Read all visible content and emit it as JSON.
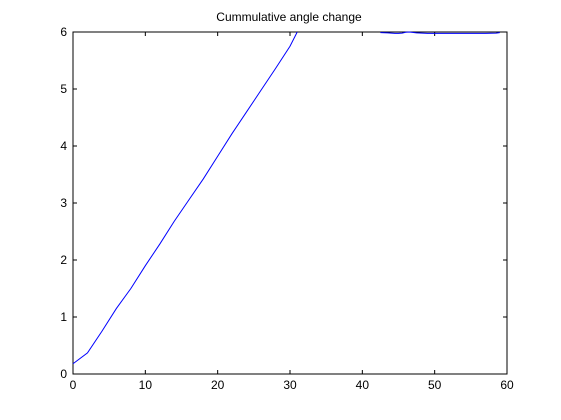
{
  "chart_data": {
    "type": "line",
    "title": "Cummulative angle change",
    "xlabel": "",
    "ylabel": "",
    "xlim": [
      0,
      60
    ],
    "ylim": [
      0,
      6
    ],
    "xticks": [
      "0",
      "10",
      "20",
      "30",
      "40",
      "50",
      "60"
    ],
    "yticks": [
      "0",
      "1",
      "2",
      "3",
      "4",
      "5",
      "6"
    ],
    "grid": false,
    "legend": "none",
    "line_color": "#0000ff",
    "series": [
      {
        "x": [
          0,
          2,
          4,
          6,
          8,
          10,
          12,
          14,
          16,
          18,
          20,
          22,
          24,
          26,
          28,
          30,
          31
        ],
        "y": [
          0.18,
          0.37,
          0.75,
          1.15,
          1.5,
          1.9,
          2.28,
          2.68,
          3.05,
          3.42,
          3.82,
          4.22,
          4.6,
          4.98,
          5.36,
          5.75,
          6.0
        ]
      },
      {
        "x": [
          42.5,
          43.5,
          44.5,
          45.0,
          45.5,
          46.0,
          46.5,
          47.5,
          49,
          51,
          53,
          55,
          57,
          58.5,
          59
        ],
        "y": [
          5.99,
          5.985,
          5.975,
          5.975,
          5.98,
          5.995,
          6.0,
          5.985,
          5.975,
          5.975,
          5.975,
          5.975,
          5.975,
          5.98,
          5.99
        ]
      }
    ]
  }
}
